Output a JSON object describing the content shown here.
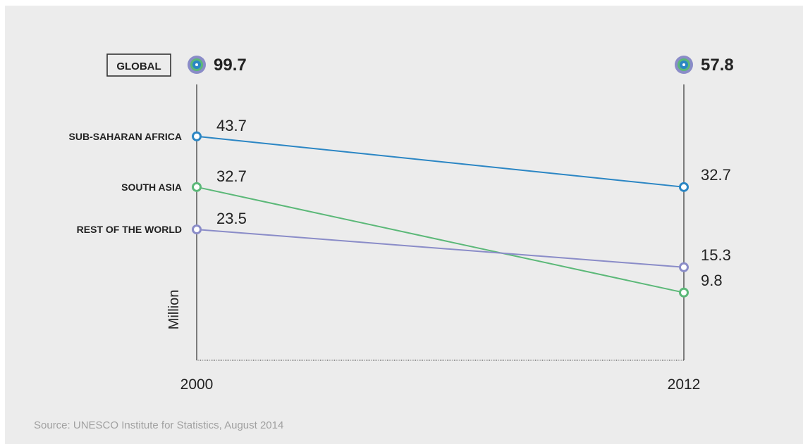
{
  "chart_data": {
    "type": "line",
    "x": [
      "2000",
      "2012"
    ],
    "ylabel": "Million",
    "global": {
      "label": "GLOBAL",
      "values": [
        99.7,
        57.8
      ],
      "value_labels": [
        "99.7",
        "57.8"
      ]
    },
    "series": [
      {
        "name": "SUB-SAHARAN AFRICA",
        "values": [
          43.7,
          32.7
        ],
        "value_labels": [
          "43.7",
          "32.7"
        ],
        "color": "#2b86c4"
      },
      {
        "name": "SOUTH ASIA",
        "values": [
          32.7,
          9.8
        ],
        "value_labels": [
          "32.7",
          "9.8"
        ],
        "color": "#5bb878"
      },
      {
        "name": "REST OF THE WORLD",
        "values": [
          23.5,
          15.3
        ],
        "value_labels": [
          "23.5",
          "15.3"
        ],
        "color": "#8a8cc8"
      }
    ]
  },
  "source": "Source: UNESCO Institute for Statistics, August 2014",
  "colors": {
    "background": "#ececec",
    "axis": "#333333",
    "text": "#222222",
    "source_text": "#a0a0a0"
  }
}
